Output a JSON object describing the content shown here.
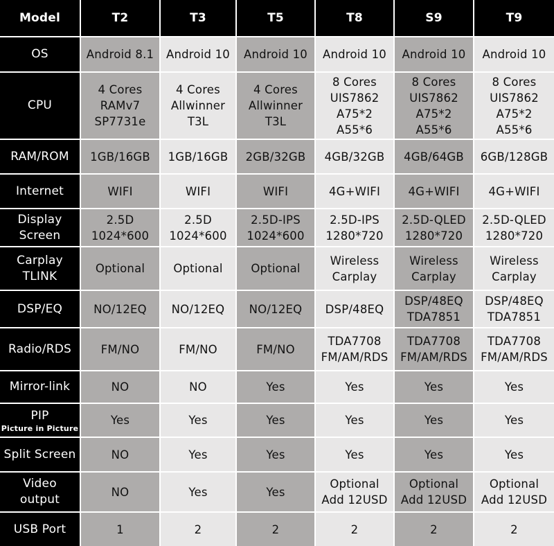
{
  "colors": {
    "header_bg": "#000000",
    "gray_column": "#aeacab",
    "light_column": "#e8e7e7"
  },
  "header": [
    "Model",
    "T2",
    "T3",
    "T5",
    "T8",
    "S9",
    "T9"
  ],
  "rows": [
    {
      "label": "OS",
      "sub": "",
      "values": [
        "Android 8.1",
        "Android 10",
        "Android 10",
        "Android 10",
        "Android 10",
        "Android 10"
      ]
    },
    {
      "label": "CPU",
      "sub": "",
      "values": [
        "4 Cores\nRAMv7\nSP7731e",
        "4 Cores\nAllwinner\nT3L",
        "4 Cores\nAllwinner\nT3L",
        "8 Cores\nUIS7862\nA75*2\nA55*6",
        "8 Cores\nUIS7862\nA75*2\nA55*6",
        "8 Cores\nUIS7862\nA75*2\nA55*6"
      ]
    },
    {
      "label": "RAM/ROM",
      "sub": "",
      "values": [
        "1GB/16GB",
        "1GB/16GB",
        "2GB/32GB",
        "4GB/32GB",
        "4GB/64GB",
        "6GB/128GB"
      ]
    },
    {
      "label": "Internet",
      "sub": "",
      "values": [
        "WIFI",
        "WIFI",
        "WIFI",
        "4G+WIFI",
        "4G+WIFI",
        "4G+WIFI"
      ]
    },
    {
      "label": "Display\nScreen",
      "sub": "",
      "values": [
        "2.5D\n1024*600",
        "2.5D\n1024*600",
        "2.5D-IPS\n1024*600",
        "2.5D-IPS\n1280*720",
        "2.5D-QLED\n1280*720",
        "2.5D-QLED\n1280*720"
      ]
    },
    {
      "label": "Carplay\nTLINK",
      "sub": "",
      "values": [
        "Optional",
        "Optional",
        "Optional",
        "Wireless\nCarplay",
        "Wireless\nCarplay",
        "Wireless\nCarplay"
      ]
    },
    {
      "label": "DSP/EQ",
      "sub": "",
      "values": [
        "NO/12EQ",
        "NO/12EQ",
        "NO/12EQ",
        "DSP/48EQ",
        "DSP/48EQ\nTDA7851",
        "DSP/48EQ\nTDA7851"
      ]
    },
    {
      "label": "Radio/RDS",
      "sub": "",
      "values": [
        "FM/NO",
        "FM/NO",
        "FM/NO",
        "TDA7708\nFM/AM/RDS",
        "TDA7708\nFM/AM/RDS",
        "TDA7708\nFM/AM/RDS"
      ]
    },
    {
      "label": "Mirror-link",
      "sub": "",
      "values": [
        "NO",
        "NO",
        "Yes",
        "Yes",
        "Yes",
        "Yes"
      ]
    },
    {
      "label": "PIP",
      "sub": "Picture in Picture",
      "values": [
        "Yes",
        "Yes",
        "Yes",
        "Yes",
        "Yes",
        "Yes"
      ]
    },
    {
      "label": "Split Screen",
      "sub": "",
      "values": [
        "NO",
        "Yes",
        "Yes",
        "Yes",
        "Yes",
        "Yes"
      ]
    },
    {
      "label": "Video\noutput",
      "sub": "",
      "values": [
        "NO",
        "Yes",
        "Yes",
        "Optional\nAdd 12USD",
        "Optional\nAdd 12USD",
        "Optional\nAdd 12USD"
      ]
    },
    {
      "label": "USB Port",
      "sub": "",
      "values": [
        "1",
        "2",
        "2",
        "2",
        "2",
        "2"
      ]
    }
  ]
}
